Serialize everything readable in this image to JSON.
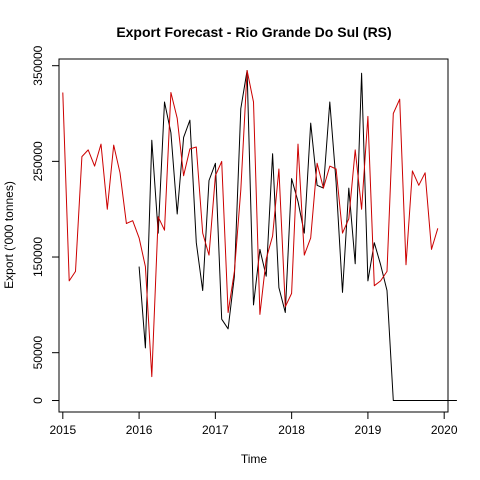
{
  "chart_data": {
    "type": "line",
    "title": "Export Forecast - Rio Grande Do Sul (RS)",
    "xlabel": "Time",
    "ylabel": "Export ('000 tonnes)",
    "xlim": [
      2014.95,
      2020.05
    ],
    "ylim": [
      -12000,
      357000
    ],
    "x_ticks": [
      2015,
      2016,
      2017,
      2018,
      2019,
      2020
    ],
    "x_tick_labels": [
      "2015",
      "2016",
      "2017",
      "2018",
      "2019",
      "2020"
    ],
    "y_ticks": [
      0,
      50000,
      150000,
      250000,
      350000
    ],
    "y_tick_labels": [
      "0",
      "50000",
      "150000",
      "250000",
      "350000"
    ],
    "grid": false,
    "legend": "none",
    "series": [
      {
        "color": "#000000",
        "x_start": 2016.0,
        "x_step": 0.0833333,
        "values": [
          140000,
          55000,
          272000,
          175000,
          312000,
          280000,
          195000,
          275000,
          293000,
          165000,
          115000,
          230000,
          248000,
          85000,
          75000,
          130000,
          305000,
          345000,
          100000,
          158000,
          130000,
          258000,
          118000,
          92000,
          232000,
          208000,
          175000,
          290000,
          225000,
          222000,
          312000,
          228000,
          113000,
          222000,
          143000,
          342000,
          125000,
          165000,
          142000,
          115000,
          0,
          0,
          0,
          0,
          0,
          0,
          0,
          0,
          0,
          0,
          0
        ]
      },
      {
        "color": "#cc0000",
        "x_start": 2015.0,
        "x_step": 0.0833333,
        "values": [
          322000,
          125000,
          135000,
          255000,
          262000,
          245000,
          268000,
          200000,
          267000,
          238000,
          185000,
          188000,
          170000,
          140000,
          25000,
          192000,
          178000,
          322000,
          295000,
          235000,
          263000,
          265000,
          175000,
          152000,
          235000,
          250000,
          92000,
          135000,
          220000,
          345000,
          312000,
          90000,
          148000,
          172000,
          242000,
          98000,
          112000,
          268000,
          152000,
          170000,
          248000,
          222000,
          245000,
          242000,
          175000,
          190000,
          262000,
          200000,
          297000,
          120000,
          125000,
          135000,
          300000,
          315000,
          142000,
          240000,
          225000,
          238000,
          158000,
          180000
        ]
      }
    ]
  }
}
